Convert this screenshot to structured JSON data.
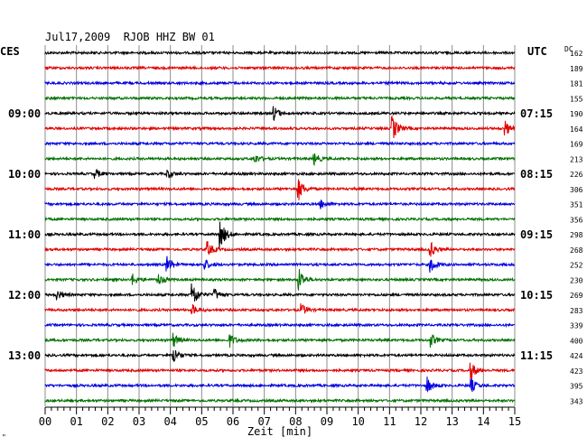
{
  "header": {
    "title": "Jul17,2009  RJOB HHZ BW 01",
    "left_timezone": "CES",
    "right_timezone": "UTC",
    "dc_label": "DC",
    "corner_mark": "\""
  },
  "chart_data": {
    "type": "line",
    "title": "Jul17,2009  RJOB HHZ BW 01",
    "xlabel": "Zeit [min]",
    "xlim": [
      0,
      15
    ],
    "x_ticks": [
      "00",
      "01",
      "02",
      "03",
      "04",
      "05",
      "06",
      "07",
      "08",
      "09",
      "10",
      "11",
      "12",
      "13",
      "14",
      "15"
    ],
    "left_time_labels": [
      {
        "trace": 4,
        "label": "09:00"
      },
      {
        "trace": 8,
        "label": "10:00"
      },
      {
        "trace": 12,
        "label": "11:00"
      },
      {
        "trace": 16,
        "label": "12:00"
      },
      {
        "trace": 20,
        "label": "13:00"
      }
    ],
    "right_time_labels": [
      {
        "trace": 4,
        "label": "07:15"
      },
      {
        "trace": 8,
        "label": "08:15"
      },
      {
        "trace": 12,
        "label": "09:15"
      },
      {
        "trace": 16,
        "label": "10:15"
      },
      {
        "trace": 20,
        "label": "11:15"
      }
    ],
    "trace_colors": [
      "#000000",
      "#e00000",
      "#0000e0",
      "#007000"
    ],
    "dc_offsets": [
      162,
      189,
      181,
      155,
      190,
      164,
      169,
      213,
      226,
      306,
      351,
      356,
      298,
      268,
      252,
      230,
      269,
      283,
      339,
      400,
      424,
      423,
      395,
      343
    ],
    "events": [
      {
        "trace": 4,
        "minute": 7.3,
        "amp": 8
      },
      {
        "trace": 5,
        "minute": 11.1,
        "amp": 14
      },
      {
        "trace": 5,
        "minute": 14.7,
        "amp": 8
      },
      {
        "trace": 7,
        "minute": 6.7,
        "amp": 5
      },
      {
        "trace": 7,
        "minute": 8.6,
        "amp": 6
      },
      {
        "trace": 8,
        "minute": 1.6,
        "amp": 5
      },
      {
        "trace": 8,
        "minute": 3.9,
        "amp": 5
      },
      {
        "trace": 9,
        "minute": 8.1,
        "amp": 12
      },
      {
        "trace": 10,
        "minute": 8.8,
        "amp": 5
      },
      {
        "trace": 12,
        "minute": 5.6,
        "amp": 16
      },
      {
        "trace": 13,
        "minute": 5.2,
        "amp": 8
      },
      {
        "trace": 13,
        "minute": 12.3,
        "amp": 9
      },
      {
        "trace": 14,
        "minute": 3.9,
        "amp": 9
      },
      {
        "trace": 14,
        "minute": 5.1,
        "amp": 6
      },
      {
        "trace": 14,
        "minute": 12.3,
        "amp": 10
      },
      {
        "trace": 15,
        "minute": 2.8,
        "amp": 6
      },
      {
        "trace": 15,
        "minute": 3.6,
        "amp": 7
      },
      {
        "trace": 15,
        "minute": 8.1,
        "amp": 14
      },
      {
        "trace": 16,
        "minute": 0.4,
        "amp": 5
      },
      {
        "trace": 16,
        "minute": 4.7,
        "amp": 16
      },
      {
        "trace": 16,
        "minute": 5.4,
        "amp": 7
      },
      {
        "trace": 17,
        "minute": 4.7,
        "amp": 6
      },
      {
        "trace": 17,
        "minute": 8.2,
        "amp": 6
      },
      {
        "trace": 19,
        "minute": 4.1,
        "amp": 8
      },
      {
        "trace": 19,
        "minute": 5.9,
        "amp": 7
      },
      {
        "trace": 19,
        "minute": 12.3,
        "amp": 8
      },
      {
        "trace": 20,
        "minute": 4.1,
        "amp": 10
      },
      {
        "trace": 21,
        "minute": 13.6,
        "amp": 10
      },
      {
        "trace": 22,
        "minute": 12.2,
        "amp": 9
      },
      {
        "trace": 22,
        "minute": 13.6,
        "amp": 8
      }
    ]
  }
}
